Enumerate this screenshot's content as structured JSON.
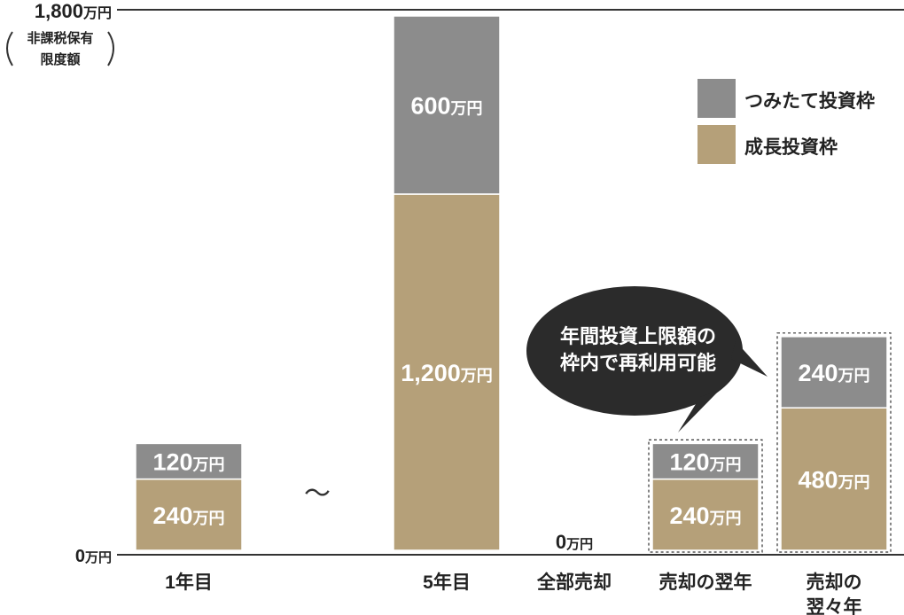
{
  "chart_data": {
    "type": "bar",
    "stacked": true,
    "unit": "万円",
    "ylim": [
      0,
      1800
    ],
    "y_ticks": [
      {
        "value": 0,
        "label": "0",
        "unit": "万円"
      },
      {
        "value": 1800,
        "label": "1,800",
        "unit": "万円",
        "note_lines": [
          "非課税保有",
          "限度額"
        ]
      }
    ],
    "categories": [
      {
        "label_lines": [
          "1年目"
        ]
      },
      {
        "label_lines": [
          "5年目"
        ]
      },
      {
        "label_lines": [
          "全部売却"
        ]
      },
      {
        "label_lines": [
          "売却の翌年"
        ]
      },
      {
        "label_lines": [
          "売却の",
          "翌々年"
        ]
      }
    ],
    "series": [
      {
        "name": "成長投資枠",
        "color": "#b5a079",
        "values": [
          240,
          1200,
          0,
          240,
          480
        ],
        "value_labels": [
          "240",
          "1,200",
          "",
          "240",
          "480"
        ]
      },
      {
        "name": "つみたて投資枠",
        "color": "#8c8c8c",
        "values": [
          120,
          600,
          0,
          120,
          240
        ],
        "value_labels": [
          "120",
          "600",
          "",
          "120",
          "240"
        ]
      }
    ],
    "zero_label": {
      "value": "0",
      "unit": "万円"
    },
    "legend": {
      "position": "top-right"
    },
    "gap_marker": "～",
    "callout_lines": [
      "年間投資上限額の",
      "枠内で再利用可能"
    ],
    "dashed_highlight_categories": [
      3,
      4
    ]
  }
}
